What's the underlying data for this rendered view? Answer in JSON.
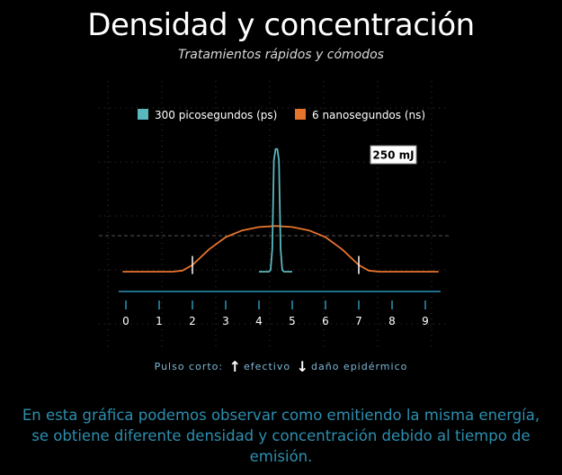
{
  "header": {
    "title": "Densidad y concentración",
    "subtitle": "Tratamientos rápidos y cómodos"
  },
  "chart_data": {
    "type": "line",
    "title": "",
    "xlabel": "",
    "ylabel": "",
    "x_ticks": [
      "0",
      "1",
      "2",
      "3",
      "4",
      "5",
      "6",
      "7",
      "8",
      "9"
    ],
    "xlim": [
      0,
      9
    ],
    "grid": true,
    "legend_position": "top",
    "annotation": "250 mJ",
    "series": [
      {
        "name": "300 picosegundos (ps)",
        "color": "#5bb7be",
        "x": [
          4.0,
          4.3,
          4.35,
          4.4,
          4.45,
          4.5,
          4.55,
          4.6,
          4.65,
          4.7,
          4.75,
          5.0
        ],
        "y": [
          0,
          0,
          0.03,
          0.4,
          2.0,
          2.2,
          2.2,
          2.0,
          0.4,
          0.03,
          0,
          0
        ]
      },
      {
        "name": "6 nanosegundos (ns)",
        "color": "#e8742c",
        "x": [
          -0.1,
          1.4,
          1.7,
          2.0,
          2.5,
          3.0,
          3.5,
          4.0,
          4.5,
          5.0,
          5.5,
          6.0,
          6.5,
          7.0,
          7.3,
          7.6,
          9.4
        ],
        "y": [
          0,
          0,
          0.02,
          0.12,
          0.4,
          0.62,
          0.74,
          0.8,
          0.82,
          0.8,
          0.74,
          0.62,
          0.4,
          0.12,
          0.02,
          0,
          0
        ]
      }
    ],
    "markers_x": [
      2,
      7
    ],
    "colors": {
      "ps": "#5bb7be",
      "ns": "#e8742c",
      "axis": "#1f6f8b",
      "grid": "#3a3a3a"
    }
  },
  "caption": {
    "prefix": "Pulso corto:",
    "effective": "efectivo",
    "damage": "daño epidérmico"
  },
  "footer": {
    "text": "En esta gráfica podemos observar como emitiendo la misma energía, se obtiene diferente densidad y concentración debido al tiempo de emisión."
  }
}
